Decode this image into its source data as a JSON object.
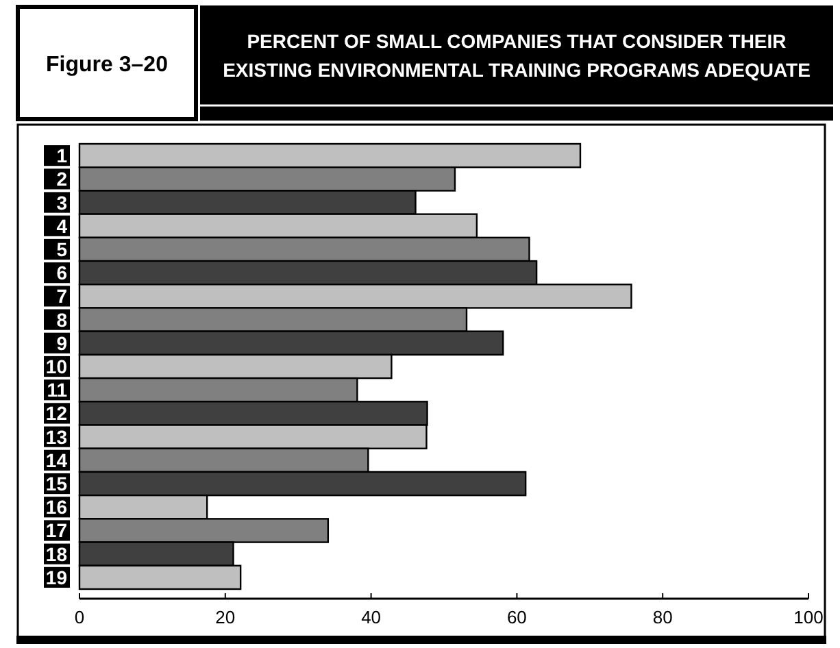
{
  "chart_data": {
    "type": "bar",
    "orientation": "horizontal",
    "title": "PERCENT OF SMALL COMPANIES THAT CONSIDER THEIR EXISTING ENVIRONMENTAL TRAINING PROGRAMS ADEQUATE",
    "annotations": [
      "Figure 3–20"
    ],
    "categories": [
      "1",
      "2",
      "3",
      "4",
      "5",
      "6",
      "7",
      "8",
      "9",
      "10",
      "11",
      "12",
      "13",
      "14",
      "15",
      "16",
      "17",
      "18",
      "19"
    ],
    "values": [
      68.7,
      51.5,
      46.1,
      54.5,
      61.7,
      62.7,
      75.7,
      53.1,
      58.1,
      42.8,
      38.1,
      47.7,
      47.6,
      39.6,
      61.2,
      17.5,
      34.1,
      21.1,
      22.1
    ],
    "colors": [
      "#bfbfbf",
      "#808080",
      "#404040",
      "#bfbfbf",
      "#808080",
      "#404040",
      "#bfbfbf",
      "#808080",
      "#404040",
      "#bfbfbf",
      "#808080",
      "#404040",
      "#bfbfbf",
      "#808080",
      "#404040",
      "#bfbfbf",
      "#808080",
      "#404040",
      "#bfbfbf"
    ],
    "xlim": [
      0,
      100
    ],
    "xticks": [
      0,
      20,
      40,
      60,
      80,
      100
    ],
    "grid": false
  }
}
